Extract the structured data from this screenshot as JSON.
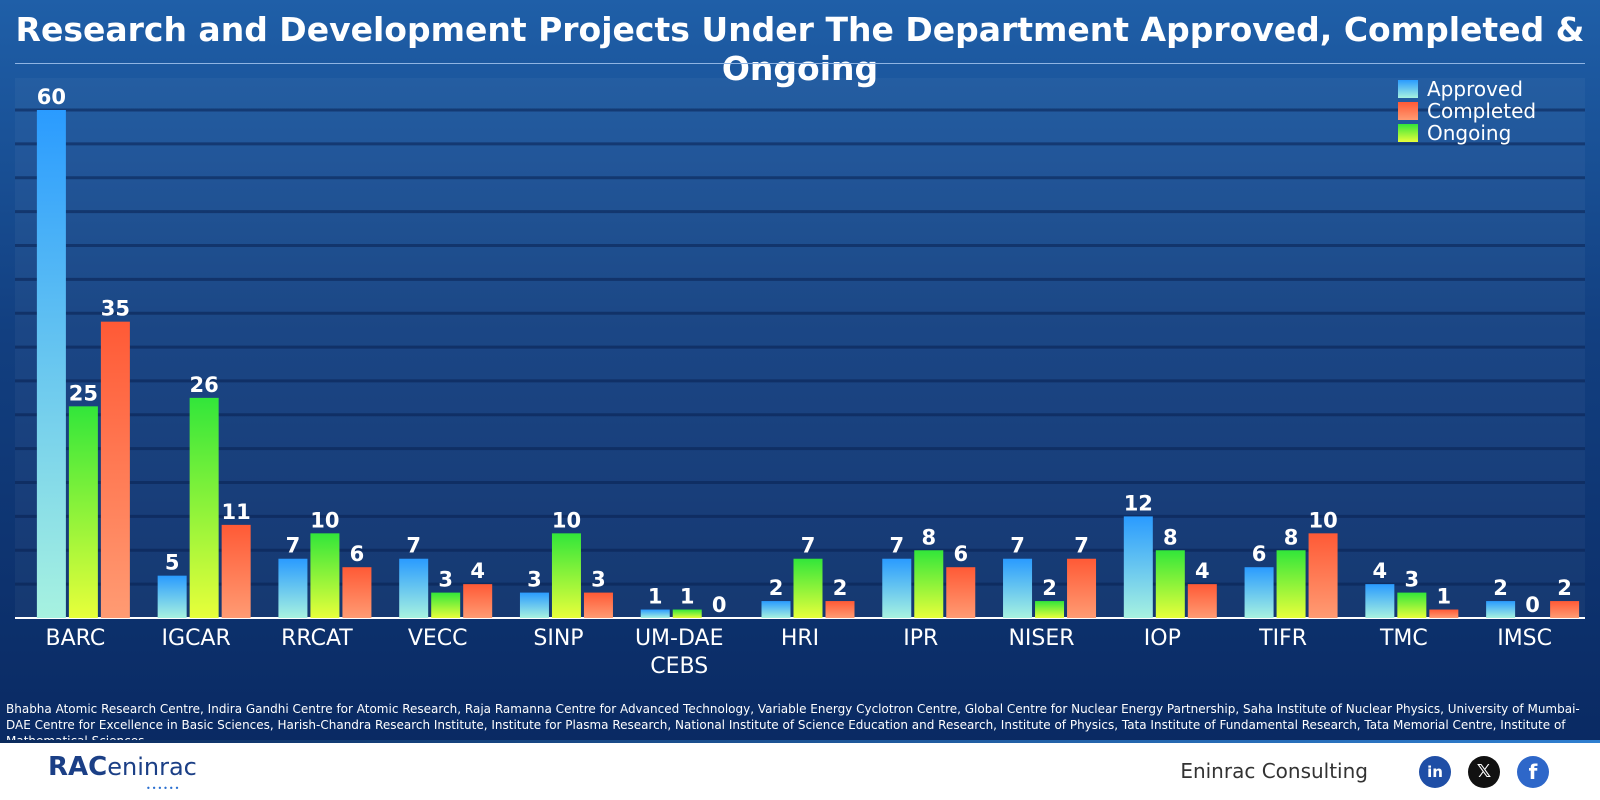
{
  "title": "Research and Development Projects Under The Department Approved, Completed & Ongoing",
  "chart_data": {
    "type": "bar",
    "categories": [
      "BARC",
      "IGCAR",
      "RRCAT",
      "VECC",
      "SINP",
      "UM-DAE CEBS",
      "HRI",
      "IPR",
      "NISER",
      "IOP",
      "TIFR",
      "TMC",
      "IMSC"
    ],
    "bars": [
      [
        {
          "series": "Approved",
          "value": 60
        },
        {
          "series": "Ongoing",
          "value": 25
        },
        {
          "series": "Completed",
          "value": 35
        }
      ],
      [
        {
          "series": "Approved",
          "value": 5
        },
        {
          "series": "Ongoing",
          "value": 26
        },
        {
          "series": "Completed",
          "value": 11
        }
      ],
      [
        {
          "series": "Approved",
          "value": 7
        },
        {
          "series": "Ongoing",
          "value": 10
        },
        {
          "series": "Completed",
          "value": 6
        }
      ],
      [
        {
          "series": "Approved",
          "value": 7
        },
        {
          "series": "Ongoing",
          "value": 3
        },
        {
          "series": "Completed",
          "value": 4
        }
      ],
      [
        {
          "series": "Approved",
          "value": 3
        },
        {
          "series": "Ongoing",
          "value": 10
        },
        {
          "series": "Completed",
          "value": 3
        }
      ],
      [
        {
          "series": "Approved",
          "value": 1
        },
        {
          "series": "Ongoing",
          "value": 1
        },
        {
          "series": "Completed",
          "value": 0
        }
      ],
      [
        {
          "series": "Approved",
          "value": 2
        },
        {
          "series": "Ongoing",
          "value": 7
        },
        {
          "series": "Completed",
          "value": 2
        }
      ],
      [
        {
          "series": "Approved",
          "value": 7
        },
        {
          "series": "Ongoing",
          "value": 8
        },
        {
          "series": "Completed",
          "value": 6
        }
      ],
      [
        {
          "series": "Approved",
          "value": 7
        },
        {
          "series": "Ongoing",
          "value": 2
        },
        {
          "series": "Completed",
          "value": 7
        }
      ],
      [
        {
          "series": "Approved",
          "value": 12
        },
        {
          "series": "Ongoing",
          "value": 8
        },
        {
          "series": "Completed",
          "value": 4
        }
      ],
      [
        {
          "series": "Approved",
          "value": 6
        },
        {
          "series": "Ongoing",
          "value": 8
        },
        {
          "series": "Completed",
          "value": 10
        }
      ],
      [
        {
          "series": "Approved",
          "value": 4
        },
        {
          "series": "Ongoing",
          "value": 3
        },
        {
          "series": "Completed",
          "value": 1
        }
      ],
      [
        {
          "series": "Approved",
          "value": 2
        },
        {
          "series": "Ongoing",
          "value": 0
        },
        {
          "series": "Completed",
          "value": 2
        }
      ]
    ],
    "legend": [
      "Approved",
      "Completed",
      "Ongoing"
    ],
    "legend_position": "top-right",
    "ylim": [
      0,
      60
    ],
    "grid": true
  },
  "colors": {
    "Approved": {
      "top": "#2a9bff",
      "bottom": "#a7f2e0"
    },
    "Completed": {
      "top": "#ff5a36",
      "bottom": "#ff9b73"
    },
    "Ongoing": {
      "top": "#32e63a",
      "bottom": "#e8ff3a"
    }
  },
  "footnote": "Bhabha Atomic Research Centre, Indira Gandhi Centre for Atomic Research, Raja Ramanna Centre for Advanced Technology, Variable Energy Cyclotron Centre, Global Centre for Nuclear Energy Partnership, Saha Institute of Nuclear Physics, University of Mumbai-DAE Centre for Excellence in Basic Sciences, Harish-Chandra Research Institute, Institute for Plasma Research, National Institute of Science Education and Research, Institute of Physics, Tata Institute of Fundamental Research, Tata Memorial Centre, Institute of Mathematical Sciences",
  "footer": {
    "logo_mark": "RAC",
    "logo_word": "eninrac",
    "brand": "Eninrac Consulting",
    "social": [
      "linkedin-icon",
      "x-icon",
      "facebook-icon"
    ]
  }
}
